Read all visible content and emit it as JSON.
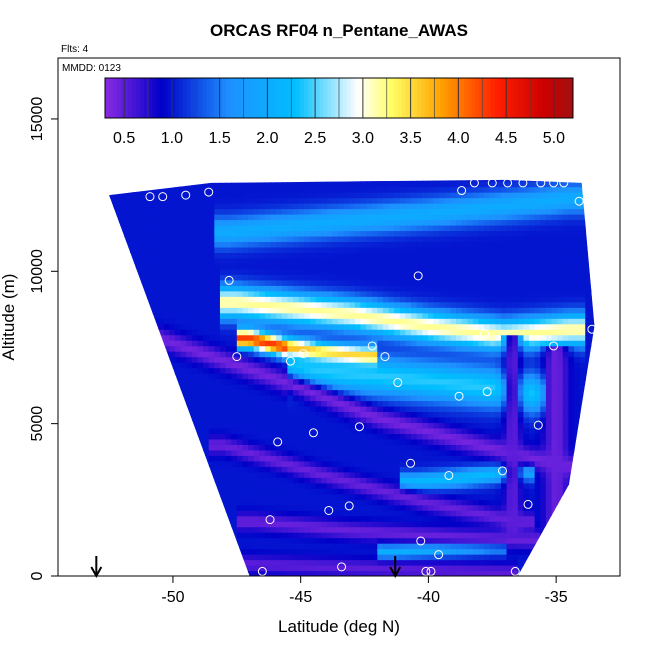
{
  "chart_data": {
    "type": "heatmap",
    "title": "ORCAS RF04 n_Pentane_AWAS",
    "flights_label": "Flts: 4",
    "date_label": "MMDD: 0123",
    "xlabel": "Latitude (deg N)",
    "ylabel": "Altitude (m)",
    "xlim": [
      -54.5,
      -32.5
    ],
    "ylim": [
      0,
      17000
    ],
    "x_ticks": [
      -50,
      -45,
      -40,
      -35
    ],
    "x_tick_labels": [
      "-50",
      "-45",
      "-40",
      "-35"
    ],
    "y_ticks": [
      0,
      5000,
      10000,
      15000
    ],
    "y_tick_labels": [
      "0",
      "5000",
      "10000",
      "15000"
    ],
    "colorbar": {
      "range": [
        0.3,
        5.2
      ],
      "ticks": [
        0.5,
        1.0,
        1.5,
        2.0,
        2.5,
        3.0,
        3.5,
        4.0,
        4.5,
        5.0
      ],
      "tick_labels": [
        "0.5",
        "1.0",
        "1.5",
        "2.0",
        "2.5",
        "3.0",
        "3.5",
        "4.0",
        "4.5",
        "5.0"
      ],
      "colors": [
        "#8a2be2",
        "#0000c8",
        "#1e90ff",
        "#00bfff",
        "#ffffff",
        "#ffff66",
        "#ffa500",
        "#ff2000",
        "#cc0000",
        "#a01010"
      ],
      "color_stops": [
        0.3,
        0.9,
        1.6,
        2.3,
        2.95,
        3.3,
        3.8,
        4.4,
        4.9,
        5.2
      ]
    },
    "field": {
      "bounds": [
        [
          -52.5,
          12500
        ],
        [
          -48.5,
          12900
        ],
        [
          -37,
          13000
        ],
        [
          -34,
          12900
        ],
        [
          -33.5,
          8200
        ],
        [
          -34.5,
          3000
        ],
        [
          -36.5,
          0
        ],
        [
          -47,
          0
        ]
      ],
      "background_value": 1.0,
      "bands": [
        {
          "x": [
            -47.8,
            -44,
            -40,
            -36.5,
            -34.5
          ],
          "y": [
            11300,
            11600,
            11900,
            12200,
            12400
          ],
          "value": 2.0,
          "thickness": 500
        },
        {
          "x": [
            -47.5,
            -43,
            -40,
            -37,
            -34.5
          ],
          "y": [
            9000,
            8600,
            8200,
            7900,
            8100
          ],
          "value": 3.2,
          "thickness": 520
        },
        {
          "x": [
            -47,
            -45.5,
            -44,
            -42.5
          ],
          "y": [
            7800,
            7500,
            7300,
            7200
          ],
          "value": 4.3,
          "thickness": 320
        },
        {
          "x": [
            -45,
            -41,
            -37.5,
            -36
          ],
          "y": [
            6800,
            6500,
            6200,
            6000
          ],
          "value": 2.4,
          "thickness": 650
        },
        {
          "x": [
            -40.5,
            -38.5,
            -36.5
          ],
          "y": [
            3100,
            3250,
            3450
          ],
          "value": 2.2,
          "thickness": 300
        },
        {
          "x": [
            -41.5,
            -39.5,
            -37.5
          ],
          "y": [
            800,
            900,
            1000
          ],
          "value": 2.1,
          "thickness": 260
        },
        {
          "x": [
            -50.5,
            -46,
            -42,
            -38,
            -34.5
          ],
          "y": [
            7800,
            6500,
            5200,
            4300,
            3600
          ],
          "value": 0.4,
          "thickness": 350
        },
        {
          "x": [
            -48,
            -44,
            -40,
            -36.5
          ],
          "y": [
            4300,
            3300,
            2400,
            1800
          ],
          "value": 0.45,
          "thickness": 300
        },
        {
          "x": [
            -46.8,
            -43,
            -39,
            -36.2
          ],
          "y": [
            1800,
            1500,
            1300,
            1200
          ],
          "value": 0.45,
          "thickness": 300
        },
        {
          "x": [
            -47,
            -42,
            -37
          ],
          "y": [
            400,
            250,
            120
          ],
          "value": 0.5,
          "thickness": 300
        }
      ],
      "vertical_bands": [
        {
          "x": -35.0,
          "y": [
            600,
            7600
          ],
          "value": 0.45,
          "thickness_deg": 0.5
        },
        {
          "x": -36.7,
          "y": [
            1500,
            8000
          ],
          "value": 0.5,
          "thickness_deg": 0.35
        }
      ]
    },
    "samples": [
      {
        "x": -50.9,
        "y": 12450
      },
      {
        "x": -50.4,
        "y": 12450
      },
      {
        "x": -49.5,
        "y": 12500
      },
      {
        "x": -48.6,
        "y": 12600
      },
      {
        "x": -38.7,
        "y": 12650
      },
      {
        "x": -38.2,
        "y": 12900
      },
      {
        "x": -37.5,
        "y": 12900
      },
      {
        "x": -36.9,
        "y": 12900
      },
      {
        "x": -36.3,
        "y": 12900
      },
      {
        "x": -35.6,
        "y": 12900
      },
      {
        "x": -35.1,
        "y": 12900
      },
      {
        "x": -34.7,
        "y": 12900
      },
      {
        "x": -34.1,
        "y": 12300
      },
      {
        "x": -47.8,
        "y": 9700
      },
      {
        "x": -40.4,
        "y": 9850
      },
      {
        "x": -33.6,
        "y": 8100
      },
      {
        "x": -37.8,
        "y": 7950
      },
      {
        "x": -35.1,
        "y": 7550
      },
      {
        "x": -47.5,
        "y": 7200
      },
      {
        "x": -44.9,
        "y": 7300
      },
      {
        "x": -45.4,
        "y": 7050
      },
      {
        "x": -42.2,
        "y": 7550
      },
      {
        "x": -41.7,
        "y": 7200
      },
      {
        "x": -41.2,
        "y": 6350
      },
      {
        "x": -37.7,
        "y": 6050
      },
      {
        "x": -38.8,
        "y": 5900
      },
      {
        "x": -35.7,
        "y": 4950
      },
      {
        "x": -42.7,
        "y": 4900
      },
      {
        "x": -44.5,
        "y": 4700
      },
      {
        "x": -45.9,
        "y": 4400
      },
      {
        "x": -40.7,
        "y": 3700
      },
      {
        "x": -37.1,
        "y": 3450
      },
      {
        "x": -39.2,
        "y": 3300
      },
      {
        "x": -36.1,
        "y": 2350
      },
      {
        "x": -43.1,
        "y": 2300
      },
      {
        "x": -43.9,
        "y": 2150
      },
      {
        "x": -46.2,
        "y": 1850
      },
      {
        "x": -40.3,
        "y": 1150
      },
      {
        "x": -39.6,
        "y": 700
      },
      {
        "x": -43.4,
        "y": 300
      },
      {
        "x": -40.1,
        "y": 150
      },
      {
        "x": -39.9,
        "y": 150
      },
      {
        "x": -36.6,
        "y": 150
      },
      {
        "x": -46.5,
        "y": 150
      }
    ],
    "arrows": [
      -53.0,
      -41.3
    ]
  }
}
